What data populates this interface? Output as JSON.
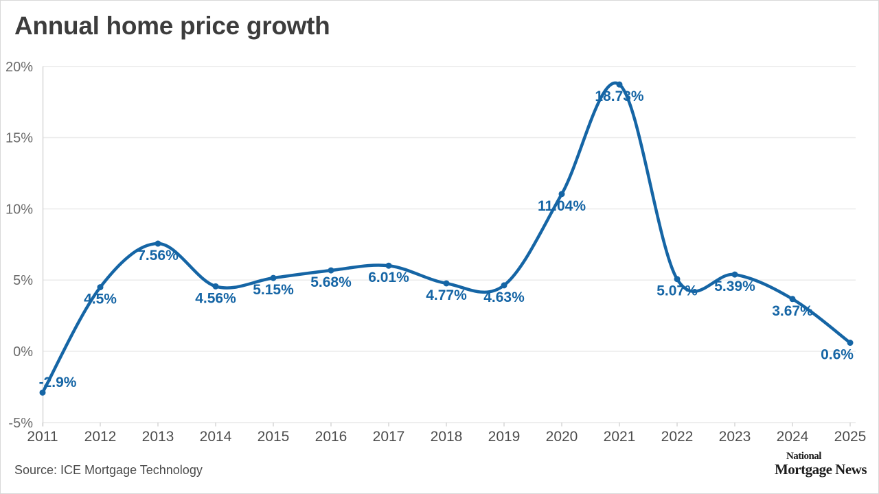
{
  "title": "Annual home price growth",
  "source_note": "Source: ICE Mortgage Technology",
  "logo": {
    "line1": "National",
    "line2": "Mortgage News"
  },
  "colors": {
    "line": "#1565a5",
    "point_label": "#1565a5",
    "grid": "#ececec",
    "axis": "#d9d9d9",
    "y_tick_text": "#6a6a6a",
    "x_tick_text": "#4c4c4c",
    "title_text": "#3c3c3c",
    "background": "#ffffff"
  },
  "chart_data": {
    "type": "line",
    "title": "Annual home price growth",
    "x": [
      "2011",
      "2012",
      "2013",
      "2014",
      "2015",
      "2016",
      "2017",
      "2018",
      "2019",
      "2020",
      "2021",
      "2022",
      "2023",
      "2024",
      "2025"
    ],
    "values": [
      -2.9,
      4.5,
      7.56,
      4.56,
      5.15,
      5.68,
      6.01,
      4.77,
      4.63,
      11.04,
      18.73,
      5.07,
      5.39,
      3.67,
      0.6
    ],
    "point_labels": [
      "-2.9%",
      "4.5%",
      "7.56%",
      "4.56%",
      "5.15%",
      "5.68%",
      "6.01%",
      "4.77%",
      "4.63%",
      "11.04%",
      "18.73%",
      "5.07%",
      "5.39%",
      "3.67%",
      "0.6%"
    ],
    "xlabel": "",
    "ylabel": "",
    "ylim": [
      -5,
      20
    ],
    "yticks": [
      {
        "value": -5,
        "label": "-5%"
      },
      {
        "value": 0,
        "label": "0%"
      },
      {
        "value": 5,
        "label": "5%"
      },
      {
        "value": 10,
        "label": "10%"
      },
      {
        "value": 15,
        "label": "15%"
      },
      {
        "value": 20,
        "label": "20%"
      }
    ],
    "grid": "horizontal",
    "legend": "none",
    "smooth": true
  }
}
